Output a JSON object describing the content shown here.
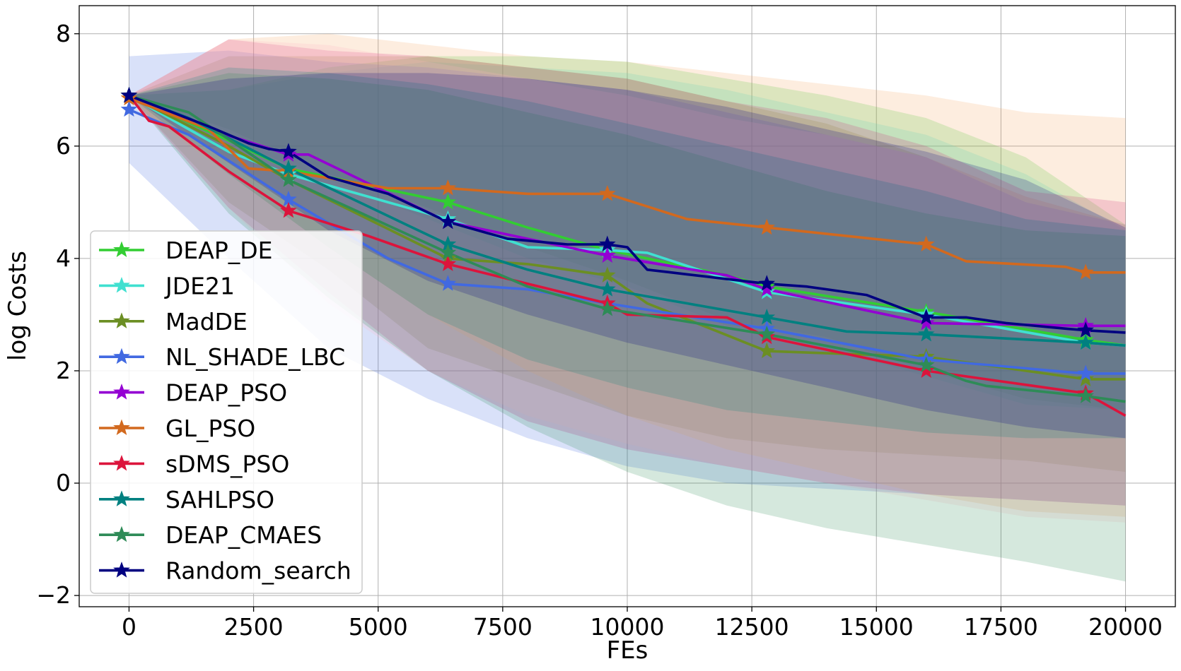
{
  "chart_data": {
    "type": "line",
    "title": "",
    "xlabel": "FEs",
    "ylabel": "log Costs",
    "xlim": [
      -1000,
      21000
    ],
    "ylim": [
      -2.2,
      8.5
    ],
    "x_ticks": [
      0,
      2500,
      5000,
      7500,
      10000,
      12500,
      15000,
      17500,
      20000
    ],
    "x_tick_labels": [
      "0",
      "2500",
      "5000",
      "7500",
      "10000",
      "12500",
      "15000",
      "17500",
      "20000"
    ],
    "y_ticks": [
      -2,
      0,
      2,
      4,
      6,
      8
    ],
    "y_tick_labels": [
      "−2",
      "0",
      "2",
      "4",
      "6",
      "8"
    ],
    "grid": true,
    "legend_position": "lower-left",
    "marker": "star",
    "marker_x": [
      0,
      3200,
      6400,
      9600,
      12800,
      16000,
      19200
    ],
    "x": [
      0,
      400,
      800,
      1200,
      1600,
      2000,
      2400,
      2800,
      3200,
      3600,
      4000,
      4400,
      4800,
      5200,
      5600,
      6000,
      6400,
      6800,
      7200,
      7600,
      8000,
      8400,
      8800,
      9200,
      9600,
      10000,
      10400,
      10800,
      11200,
      11600,
      12000,
      12400,
      12800,
      13200,
      13600,
      14000,
      14400,
      14800,
      15200,
      15600,
      16000,
      16400,
      16800,
      17200,
      17600,
      18000,
      18400,
      18800,
      19200,
      19600,
      20000
    ],
    "series": [
      {
        "name": "DEAP_DE",
        "color": "#32cd32",
        "band_color": "#32cd32",
        "key_x": [
          0,
          2000,
          3200,
          6400,
          8000,
          9600,
          12000,
          12800,
          16000,
          19200,
          20000
        ],
        "key_y": [
          6.9,
          6.1,
          5.6,
          5.0,
          4.55,
          4.15,
          3.7,
          3.5,
          3.05,
          2.55,
          2.45
        ],
        "band_upper": [
          6.9,
          7.0,
          7.4,
          7.6,
          7.6,
          7.5,
          7.2,
          6.9,
          6.5,
          5.8,
          4.6
        ],
        "band_lower": [
          6.9,
          6.3,
          5.5,
          4.9,
          4.2,
          3.6,
          2.9,
          2.6,
          2.0,
          1.5,
          1.3
        ]
      },
      {
        "name": "JDE21",
        "color": "#40e0d0",
        "band_color": "#40e0d0",
        "key_x": [
          0,
          2000,
          3200,
          6400,
          8000,
          9600,
          10400,
          12800,
          16000,
          19200,
          20000
        ],
        "key_y": [
          6.9,
          5.9,
          5.5,
          4.7,
          4.2,
          4.15,
          4.1,
          3.4,
          3.0,
          2.5,
          2.45
        ],
        "band_upper": [
          6.9,
          7.0,
          7.3,
          7.5,
          7.4,
          7.3,
          7.0,
          6.6,
          6.2,
          5.5,
          4.5
        ],
        "band_lower": [
          6.9,
          6.1,
          5.4,
          4.7,
          4.0,
          3.5,
          2.8,
          2.4,
          1.9,
          1.4,
          1.3
        ]
      },
      {
        "name": "MadDE",
        "color": "#6b8e23",
        "band_color": "#6b8e23",
        "key_x": [
          0,
          2000,
          3200,
          6400,
          8000,
          9600,
          10400,
          12800,
          16000,
          19200,
          20000
        ],
        "key_y": [
          6.9,
          6.0,
          5.4,
          4.0,
          3.9,
          3.7,
          3.2,
          2.35,
          2.25,
          1.85,
          1.85
        ],
        "band_upper": [
          6.9,
          7.6,
          7.6,
          7.6,
          7.4,
          7.2,
          6.8,
          6.4,
          5.8,
          5.1,
          4.6
        ],
        "band_lower": [
          6.9,
          5.0,
          3.8,
          2.4,
          1.8,
          1.2,
          0.8,
          0.6,
          0.5,
          0.4,
          0.2
        ]
      },
      {
        "name": "NL_SHADE_LBC",
        "color": "#4169e1",
        "band_color": "#4169e1",
        "key_x": [
          0,
          1200,
          3200,
          5200,
          6400,
          8000,
          9600,
          12800,
          16000,
          19200,
          20000
        ],
        "key_y": [
          6.65,
          6.2,
          5.05,
          4.0,
          3.55,
          3.45,
          3.2,
          2.75,
          2.2,
          1.95,
          1.95
        ],
        "band_upper": [
          7.6,
          7.7,
          7.5,
          7.4,
          7.2,
          7.0,
          6.6,
          6.2,
          5.8,
          5.0,
          4.6
        ],
        "band_lower": [
          5.7,
          4.0,
          2.4,
          1.5,
          0.8,
          0.3,
          0.0,
          -0.1,
          -0.2,
          -0.3,
          -0.4
        ]
      },
      {
        "name": "DEAP_PSO",
        "color": "#9400d3",
        "band_color": "#c71585",
        "key_x": [
          0,
          1600,
          3200,
          3600,
          6400,
          8000,
          9600,
          12000,
          12800,
          16000,
          19200,
          20000
        ],
        "key_y": [
          6.9,
          6.3,
          5.85,
          5.85,
          4.65,
          4.35,
          4.05,
          3.7,
          3.45,
          2.85,
          2.8,
          2.8
        ],
        "band_upper": [
          6.9,
          7.9,
          7.7,
          7.6,
          7.4,
          7.2,
          6.8,
          6.5,
          6.0,
          5.2,
          5.0
        ],
        "band_lower": [
          6.9,
          4.9,
          3.4,
          2.0,
          1.1,
          0.6,
          0.3,
          0.0,
          -0.2,
          -0.3,
          -0.4
        ]
      },
      {
        "name": "GL_PSO",
        "color": "#d2691e",
        "band_color": "#f4a460",
        "key_x": [
          0,
          1600,
          2400,
          3200,
          5200,
          6400,
          8000,
          9600,
          11200,
          12800,
          16000,
          16800,
          18800,
          19200,
          20000
        ],
        "key_y": [
          6.85,
          6.3,
          5.6,
          5.55,
          5.25,
          5.25,
          5.15,
          5.15,
          4.7,
          4.55,
          4.25,
          3.95,
          3.85,
          3.75,
          3.75
        ],
        "band_upper": [
          6.9,
          7.9,
          8.0,
          7.8,
          7.6,
          7.5,
          7.3,
          7.1,
          6.9,
          6.6,
          6.5
        ],
        "band_lower": [
          6.8,
          5.5,
          4.2,
          3.0,
          2.0,
          1.2,
          0.6,
          0.2,
          -0.2,
          -0.5,
          -0.6
        ]
      },
      {
        "name": "sDMS_PSO",
        "color": "#dc143c",
        "band_color": "#ffb6c1",
        "key_x": [
          0,
          400,
          800,
          2000,
          3200,
          4800,
          6400,
          8000,
          9600,
          10000,
          12000,
          12800,
          16000,
          19200,
          20000
        ],
        "key_y": [
          6.9,
          6.45,
          6.35,
          5.55,
          4.85,
          4.4,
          3.9,
          3.55,
          3.2,
          3.0,
          2.95,
          2.6,
          2.0,
          1.6,
          1.2
        ],
        "band_upper": [
          6.9,
          7.9,
          7.8,
          7.5,
          7.2,
          6.9,
          6.5,
          6.2,
          5.8,
          5.1,
          4.6
        ],
        "band_lower": [
          6.9,
          4.9,
          3.2,
          2.0,
          1.2,
          0.7,
          0.3,
          0.0,
          -0.3,
          -0.6,
          -0.7
        ]
      },
      {
        "name": "SAHLPSO",
        "color": "#008080",
        "band_color": "#008080",
        "key_x": [
          0,
          1200,
          3200,
          6400,
          8000,
          9600,
          11200,
          12800,
          14400,
          16000,
          19200,
          20000
        ],
        "key_y": [
          6.9,
          6.5,
          5.6,
          4.25,
          3.8,
          3.45,
          3.2,
          2.95,
          2.7,
          2.65,
          2.5,
          2.45
        ],
        "band_upper": [
          6.9,
          7.4,
          7.3,
          7.1,
          6.8,
          6.4,
          6.0,
          5.6,
          5.2,
          4.7,
          4.5
        ],
        "band_lower": [
          6.9,
          5.5,
          4.2,
          3.0,
          2.2,
          1.7,
          1.3,
          1.1,
          0.9,
          0.8,
          0.8
        ]
      },
      {
        "name": "DEAP_CMAES",
        "color": "#2e8b57",
        "band_color": "#2e8b57",
        "key_x": [
          0,
          1200,
          3200,
          6400,
          8000,
          9600,
          12800,
          16000,
          17000,
          19200,
          20000
        ],
        "key_y": [
          6.9,
          6.6,
          5.4,
          4.1,
          3.5,
          3.1,
          2.65,
          2.1,
          1.75,
          1.55,
          1.45
        ],
        "band_upper": [
          6.9,
          7.3,
          7.2,
          7.0,
          6.6,
          6.2,
          5.7,
          5.2,
          4.8,
          4.5,
          4.4
        ],
        "band_lower": [
          6.9,
          4.8,
          3.3,
          2.0,
          1.0,
          0.2,
          -0.4,
          -0.8,
          -1.1,
          -1.4,
          -1.75
        ]
      },
      {
        "name": "Random_search",
        "color": "#000080",
        "band_color": "#000080",
        "key_x": [
          0,
          1600,
          2400,
          2800,
          3200,
          4000,
          5200,
          6400,
          7600,
          8800,
          9600,
          10000,
          10400,
          12800,
          13600,
          14800,
          16000,
          16800,
          17600,
          18800,
          19200,
          20000
        ],
        "key_y": [
          6.9,
          6.35,
          6.05,
          5.95,
          5.9,
          5.45,
          5.15,
          4.65,
          4.35,
          4.25,
          4.25,
          4.2,
          3.8,
          3.55,
          3.5,
          3.35,
          2.95,
          2.95,
          2.85,
          2.75,
          2.72,
          2.68
        ],
        "band_upper": [
          6.9,
          7.2,
          7.3,
          7.3,
          7.2,
          7.0,
          6.7,
          6.3,
          5.9,
          5.4,
          4.55
        ],
        "band_lower": [
          6.9,
          5.7,
          4.5,
          3.6,
          3.0,
          2.5,
          2.1,
          1.7,
          1.3,
          1.0,
          0.8
        ]
      }
    ]
  }
}
